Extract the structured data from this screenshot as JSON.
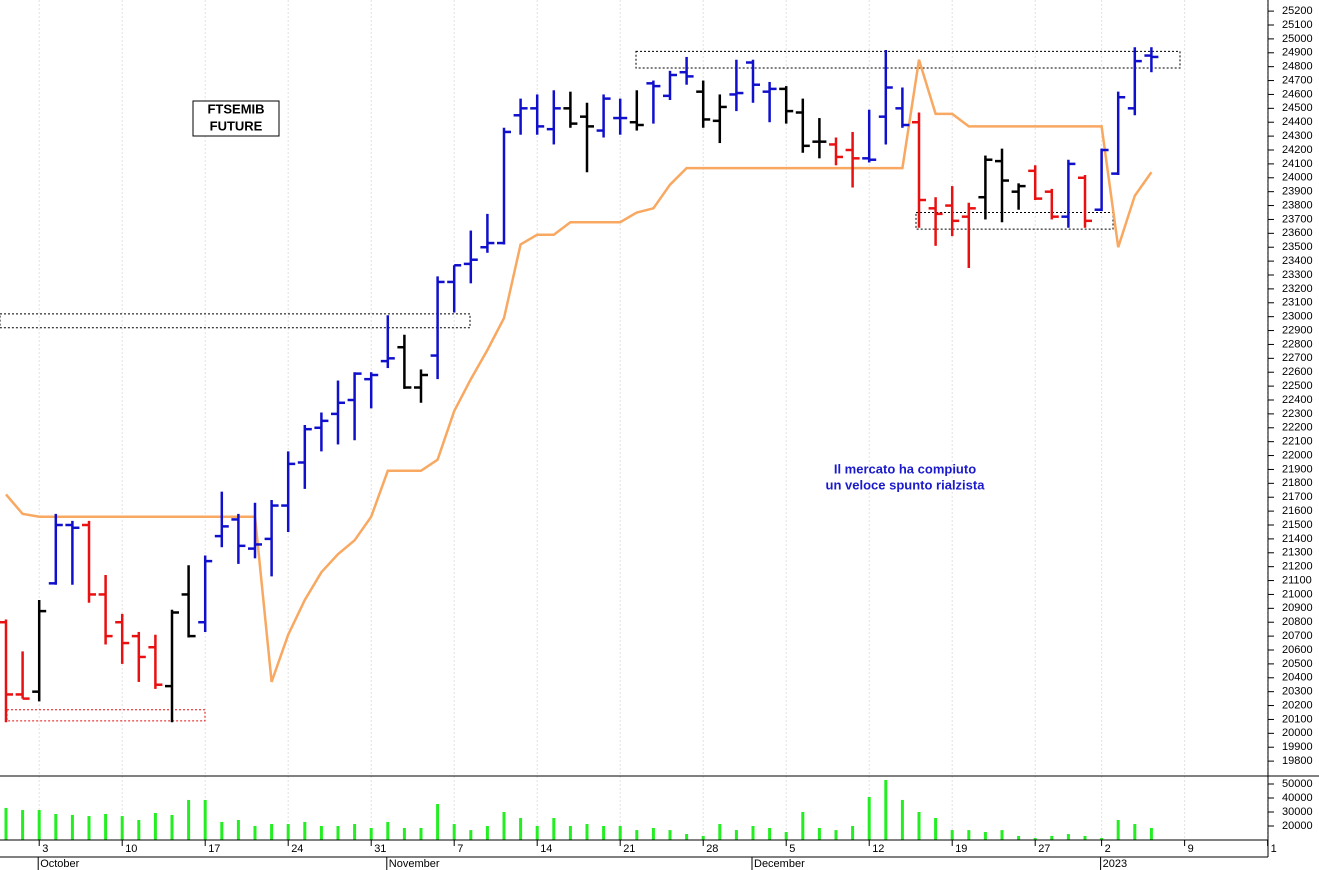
{
  "chart_data": [
    {
      "type": "ohlc",
      "title": [
        "FTSEMIB",
        "FUTURE"
      ],
      "annotation": [
        "Il mercato ha compiuto",
        "un veloce spunto rialzista"
      ],
      "ylim": [
        19700,
        25280
      ],
      "yticks": [
        19800,
        19900,
        20000,
        20100,
        20200,
        20300,
        20400,
        20500,
        20600,
        20700,
        20800,
        20900,
        21000,
        21100,
        21200,
        21300,
        21400,
        21500,
        21600,
        21700,
        21800,
        21900,
        22000,
        22100,
        22200,
        22300,
        22400,
        22500,
        22600,
        22700,
        22800,
        22900,
        23000,
        23100,
        23200,
        23300,
        23400,
        23500,
        23600,
        23700,
        23800,
        23900,
        24000,
        24100,
        24200,
        24300,
        24400,
        24500,
        24600,
        24700,
        24800,
        24900,
        25000,
        25100,
        25200
      ],
      "open": [
        20800,
        20280,
        20300,
        21080,
        21500,
        21500,
        21000,
        20800,
        20700,
        20620,
        20340,
        21000,
        20800,
        21420,
        21540,
        21330,
        21400,
        21640,
        21950,
        22200,
        22300,
        22400,
        22550,
        22680,
        22780,
        22490,
        22720,
        23250,
        23380,
        23500,
        23530,
        24450,
        24500,
        24350,
        24500,
        24440,
        24340,
        24430,
        24400,
        24680,
        24590,
        24760,
        24620,
        24410,
        24600,
        24830,
        24620,
        24640,
        24470,
        24260,
        24240,
        24200,
        24140,
        24440,
        24500,
        24400,
        23780,
        23800,
        23720,
        23860,
        24120,
        23900,
        24050,
        23900,
        23720,
        24000,
        23770,
        24030,
        24500,
        24880,
        null,
        null,
        null,
        null,
        null,
        null,
        null
      ],
      "high": [
        20820,
        20590,
        20960,
        21580,
        21530,
        21530,
        21140,
        20860,
        20730,
        20710,
        20890,
        21210,
        21280,
        21740,
        21580,
        21660,
        21680,
        22030,
        22220,
        22310,
        22540,
        22600,
        22600,
        23010,
        22870,
        22620,
        23290,
        23370,
        23620,
        23740,
        24360,
        24570,
        24600,
        24630,
        24620,
        24540,
        24600,
        24570,
        24630,
        24700,
        24770,
        24870,
        24700,
        24600,
        24850,
        24850,
        24690,
        24660,
        24570,
        24430,
        24290,
        24330,
        24490,
        24920,
        24650,
        24470,
        23860,
        23940,
        23820,
        24160,
        24210,
        23960,
        24090,
        23920,
        24130,
        24020,
        24210,
        24620,
        24940,
        24940,
        null,
        null,
        null,
        null,
        null,
        null,
        null
      ],
      "low": [
        20080,
        20250,
        20230,
        21070,
        21070,
        20940,
        20640,
        20500,
        20370,
        20320,
        20080,
        20690,
        20730,
        21340,
        21220,
        21260,
        21130,
        21450,
        21760,
        22030,
        22080,
        22110,
        22340,
        22630,
        22480,
        22380,
        22550,
        23030,
        23240,
        23460,
        23520,
        24310,
        24310,
        24240,
        24360,
        24040,
        24290,
        24310,
        24340,
        24390,
        24560,
        24670,
        24360,
        24250,
        24480,
        24540,
        24400,
        24390,
        24180,
        24140,
        24090,
        23930,
        24110,
        24240,
        24360,
        23640,
        23510,
        23580,
        23350,
        23700,
        23680,
        23770,
        23840,
        23700,
        23640,
        23640,
        23760,
        24020,
        24450,
        24760,
        null,
        null,
        null,
        null,
        null,
        null,
        null
      ],
      "close": [
        20280,
        20250,
        20880,
        21500,
        21480,
        21000,
        20700,
        20650,
        20550,
        20350,
        20870,
        20700,
        21240,
        21490,
        21350,
        21360,
        21640,
        21940,
        22190,
        22250,
        22380,
        22590,
        22580,
        22700,
        22490,
        22580,
        23250,
        23370,
        23410,
        23530,
        24330,
        24500,
        24370,
        24500,
        24390,
        24370,
        24570,
        24430,
        24380,
        24660,
        24740,
        24730,
        24420,
        24510,
        24610,
        24670,
        24640,
        24480,
        24230,
        24260,
        24150,
        24140,
        24130,
        24650,
        24380,
        23840,
        23740,
        23690,
        23780,
        24130,
        23980,
        23940,
        23850,
        23720,
        24100,
        23690,
        24200,
        24580,
        24840,
        24870,
        null,
        null,
        null,
        null,
        null,
        null,
        null
      ],
      "bar_colors": [
        "#e81010",
        "#e81010",
        "#000000",
        "#1010cc",
        "#1010cc",
        "#e81010",
        "#e81010",
        "#e81010",
        "#e81010",
        "#e81010",
        "#000000",
        "#000000",
        "#1010cc",
        "#1010cc",
        "#1010cc",
        "#1010cc",
        "#1010cc",
        "#1010cc",
        "#1010cc",
        "#1010cc",
        "#1010cc",
        "#1010cc",
        "#1010cc",
        "#1010cc",
        "#000000",
        "#000000",
        "#1010cc",
        "#1010cc",
        "#1010cc",
        "#1010cc",
        "#1010cc",
        "#1010cc",
        "#1010cc",
        "#1010cc",
        "#000000",
        "#000000",
        "#1010cc",
        "#1010cc",
        "#000000",
        "#1010cc",
        "#1010cc",
        "#1010cc",
        "#000000",
        "#000000",
        "#1010cc",
        "#1010cc",
        "#1010cc",
        "#000000",
        "#000000",
        "#000000",
        "#e81010",
        "#e81010",
        "#1010cc",
        "#1010cc",
        "#1010cc",
        "#e81010",
        "#e81010",
        "#e81010",
        "#e81010",
        "#000000",
        "#000000",
        "#000000",
        "#e81010",
        "#e81010",
        "#1010cc",
        "#e81010",
        "#1010cc",
        "#1010cc",
        "#1010cc",
        "#1010cc",
        null,
        null,
        null,
        null,
        null,
        null,
        null
      ],
      "line": {
        "color": "#f8a860",
        "values": [
          21720,
          21580,
          21560,
          21560,
          21560,
          21560,
          21560,
          21560,
          21560,
          21560,
          21560,
          21560,
          21560,
          21560,
          21560,
          21560,
          20370,
          20710,
          20960,
          21160,
          21290,
          21390,
          21560,
          21890,
          21890,
          21890,
          21970,
          22320,
          22550,
          22760,
          22990,
          23520,
          23590,
          23590,
          23680,
          23680,
          23680,
          23680,
          23750,
          23780,
          23950,
          24070,
          24070,
          24070,
          24070,
          24070,
          24070,
          24070,
          24070,
          24070,
          24070,
          24070,
          24070,
          24070,
          24070,
          24850,
          24460,
          24460,
          24370,
          24370,
          24370,
          24370,
          24370,
          24370,
          24370,
          24370,
          24370,
          23500,
          23870,
          24040,
          null,
          null,
          null,
          null,
          null,
          null,
          null
        ]
      },
      "zones": [
        {
          "high": 23020,
          "low": 22920,
          "color": "#000000"
        },
        {
          "high": 20170,
          "low": 20090,
          "color": "#e81010"
        },
        {
          "high": 24910,
          "low": 24790,
          "color": "#000000"
        },
        {
          "high": 23750,
          "low": 23630,
          "color": "#000000"
        }
      ],
      "grid": true
    },
    {
      "type": "bar",
      "categories": [
        null,
        null,
        "3",
        null,
        null,
        null,
        null,
        "10",
        null,
        null,
        null,
        null,
        "17",
        null,
        null,
        null,
        null,
        "24",
        null,
        null,
        null,
        null,
        "31",
        null,
        null,
        null,
        null,
        "7",
        null,
        null,
        null,
        null,
        "14",
        null,
        null,
        null,
        null,
        "21",
        null,
        null,
        null,
        null,
        "28",
        null,
        null,
        null,
        null,
        "5",
        null,
        null,
        null,
        null,
        "12",
        null,
        null,
        null,
        null,
        "19",
        null,
        null,
        null,
        null,
        "27",
        null,
        null,
        null,
        "2",
        null,
        null,
        null,
        null,
        "9",
        null,
        null,
        null,
        null,
        "1"
      ],
      "months": [
        null,
        null,
        "October",
        null,
        null,
        null,
        null,
        null,
        null,
        null,
        null,
        null,
        null,
        null,
        null,
        null,
        null,
        null,
        null,
        null,
        null,
        null,
        null,
        "November",
        null,
        null,
        null,
        null,
        null,
        null,
        null,
        null,
        null,
        null,
        null,
        null,
        null,
        null,
        null,
        null,
        null,
        null,
        null,
        null,
        null,
        "December",
        null,
        null,
        null,
        null,
        null,
        null,
        null,
        null,
        null,
        null,
        null,
        null,
        null,
        null,
        null,
        null,
        null,
        null,
        null,
        null,
        "2023",
        null,
        null,
        null,
        null,
        null,
        null,
        null,
        null,
        null,
        null
      ],
      "values": [
        32900,
        31400,
        31400,
        28600,
        27900,
        27100,
        28600,
        27100,
        24300,
        29300,
        27900,
        38600,
        38600,
        22900,
        24300,
        20000,
        21400,
        21400,
        22900,
        20000,
        20000,
        21400,
        18600,
        22900,
        18600,
        18600,
        35700,
        21400,
        17100,
        20000,
        30000,
        25700,
        20000,
        25700,
        20000,
        21400,
        20000,
        20000,
        17100,
        18600,
        17100,
        14300,
        12900,
        21400,
        17100,
        20000,
        18600,
        15700,
        30000,
        18600,
        17100,
        20000,
        40700,
        52900,
        38600,
        30000,
        25700,
        17100,
        17100,
        15700,
        17100,
        12900,
        11400,
        12900,
        14300,
        12900,
        11400,
        24300,
        21400,
        18600,
        null,
        null,
        null,
        null,
        null,
        null,
        null
      ],
      "color": "#22ee22",
      "ylim": [
        10000,
        55000
      ],
      "yticks": [
        20000,
        30000,
        40000,
        50000
      ]
    }
  ]
}
